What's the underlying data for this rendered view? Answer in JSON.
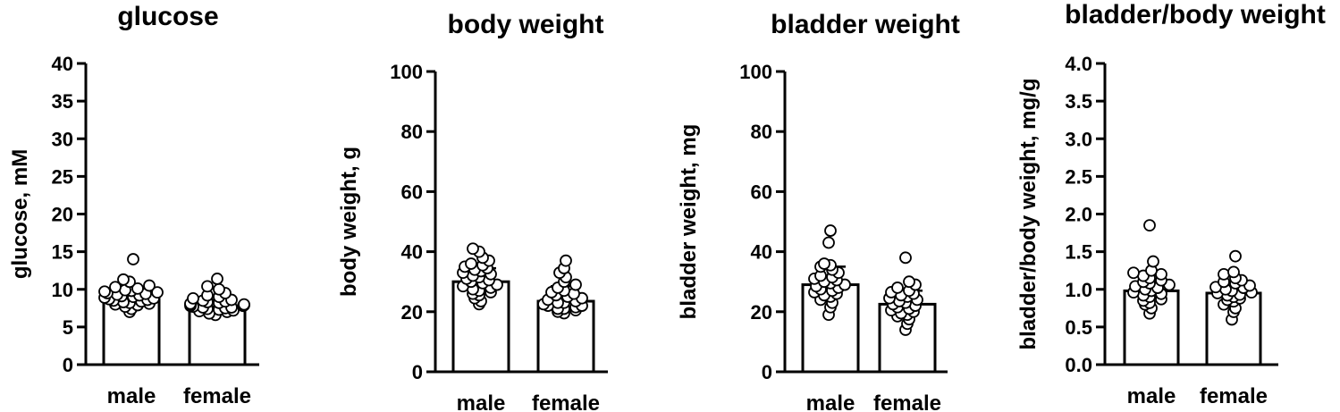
{
  "chart_data": [
    {
      "type": "bar",
      "title": "glucose",
      "ylabel": "glucose, mM",
      "xlabel": "",
      "categories": [
        "male",
        "female"
      ],
      "ylim": [
        0,
        40
      ],
      "yticks": [
        0,
        5,
        10,
        15,
        20,
        25,
        30,
        35,
        40
      ],
      "yticklabels": [
        "0",
        "5",
        "10",
        "15",
        "20",
        "25",
        "30",
        "35",
        "40"
      ],
      "means": [
        9.0,
        7.7
      ],
      "errors": [
        1.3,
        0.9
      ],
      "points": [
        [
          7.0,
          7.4,
          7.7,
          7.9,
          8.0,
          8.1,
          8.2,
          8.3,
          8.4,
          8.5,
          8.6,
          8.7,
          8.8,
          8.9,
          9.0,
          9.1,
          9.2,
          9.3,
          9.4,
          9.5,
          9.6,
          9.7,
          9.8,
          9.9,
          10.1,
          10.3,
          10.5,
          11.0,
          11.3,
          14.0
        ],
        [
          6.6,
          6.8,
          7.0,
          7.1,
          7.2,
          7.3,
          7.4,
          7.5,
          7.6,
          7.6,
          7.7,
          7.8,
          7.8,
          7.9,
          8.0,
          8.0,
          8.1,
          8.2,
          8.3,
          8.4,
          8.5,
          8.6,
          8.8,
          9.0,
          9.2,
          9.5,
          10.0,
          10.4,
          11.4
        ]
      ]
    },
    {
      "type": "bar",
      "title": "body weight",
      "ylabel": "body weight, g",
      "xlabel": "",
      "categories": [
        "male",
        "female"
      ],
      "ylim": [
        0,
        100
      ],
      "yticks": [
        0,
        20,
        40,
        60,
        80,
        100
      ],
      "yticklabels": [
        "0",
        "20",
        "40",
        "60",
        "80",
        "100"
      ],
      "means": [
        30.0,
        23.5
      ],
      "errors": [
        4.5,
        5.0
      ],
      "points": [
        [
          22.5,
          23.5,
          24.5,
          25.5,
          26.0,
          26.5,
          27.0,
          27.5,
          28.0,
          28.5,
          29.0,
          29.5,
          30.0,
          30.5,
          31.0,
          31.5,
          32.0,
          32.5,
          33.0,
          33.5,
          34.0,
          34.5,
          35.0,
          35.5,
          36.0,
          37.0,
          38.0,
          40.0,
          41.0
        ],
        [
          19.5,
          20.0,
          20.5,
          21.0,
          21.0,
          21.5,
          22.0,
          22.0,
          22.5,
          23.0,
          23.0,
          23.5,
          24.0,
          24.5,
          25.0,
          25.5,
          26.0,
          26.5,
          27.0,
          28.0,
          29.0,
          30.0,
          31.5,
          33.0,
          34.5,
          37.0
        ]
      ]
    },
    {
      "type": "bar",
      "title": "bladder weight",
      "ylabel": "bladder weight, mg",
      "xlabel": "",
      "categories": [
        "male",
        "female"
      ],
      "ylim": [
        0,
        100
      ],
      "yticks": [
        0,
        20,
        40,
        60,
        80,
        100
      ],
      "yticklabels": [
        "0",
        "20",
        "40",
        "60",
        "80",
        "100"
      ],
      "means": [
        29.0,
        22.5
      ],
      "errors": [
        6.0,
        4.5
      ],
      "points": [
        [
          19.0,
          21.5,
          23.0,
          24.0,
          25.0,
          25.5,
          26.0,
          26.5,
          27.0,
          27.5,
          28.0,
          28.5,
          29.0,
          29.5,
          30.0,
          30.5,
          31.0,
          31.5,
          32.0,
          33.0,
          34.0,
          35.0,
          35.5,
          36.0,
          43.0,
          47.0
        ],
        [
          14.0,
          16.0,
          17.5,
          18.5,
          19.0,
          19.5,
          20.0,
          20.5,
          21.0,
          21.5,
          22.0,
          22.5,
          23.0,
          23.5,
          24.0,
          24.5,
          25.0,
          25.5,
          26.0,
          26.5,
          27.0,
          28.0,
          29.0,
          30.0,
          38.0
        ]
      ]
    },
    {
      "type": "bar",
      "title": "bladder/body weight",
      "ylabel": "bladder/body weight, mg/g",
      "xlabel": "",
      "categories": [
        "male",
        "female"
      ],
      "ylim": [
        0,
        4.0
      ],
      "yticks": [
        0,
        0.5,
        1.0,
        1.5,
        2.0,
        2.5,
        3.0,
        3.5,
        4.0
      ],
      "yticklabels": [
        "0.0",
        "0.5",
        "1.0",
        "1.5",
        "2.0",
        "2.5",
        "3.0",
        "3.5",
        "4.0"
      ],
      "means": [
        0.98,
        0.95
      ],
      "errors": [
        0.22,
        0.15
      ],
      "points": [
        [
          0.68,
          0.75,
          0.8,
          0.82,
          0.85,
          0.87,
          0.9,
          0.92,
          0.94,
          0.96,
          0.98,
          1.0,
          1.02,
          1.04,
          1.06,
          1.08,
          1.1,
          1.12,
          1.15,
          1.18,
          1.2,
          1.22,
          1.25,
          1.37,
          1.85
        ],
        [
          0.6,
          0.7,
          0.75,
          0.8,
          0.84,
          0.86,
          0.88,
          0.9,
          0.92,
          0.93,
          0.95,
          0.96,
          0.98,
          1.0,
          1.02,
          1.03,
          1.05,
          1.08,
          1.1,
          1.12,
          1.15,
          1.2,
          1.23,
          1.44
        ]
      ]
    }
  ]
}
